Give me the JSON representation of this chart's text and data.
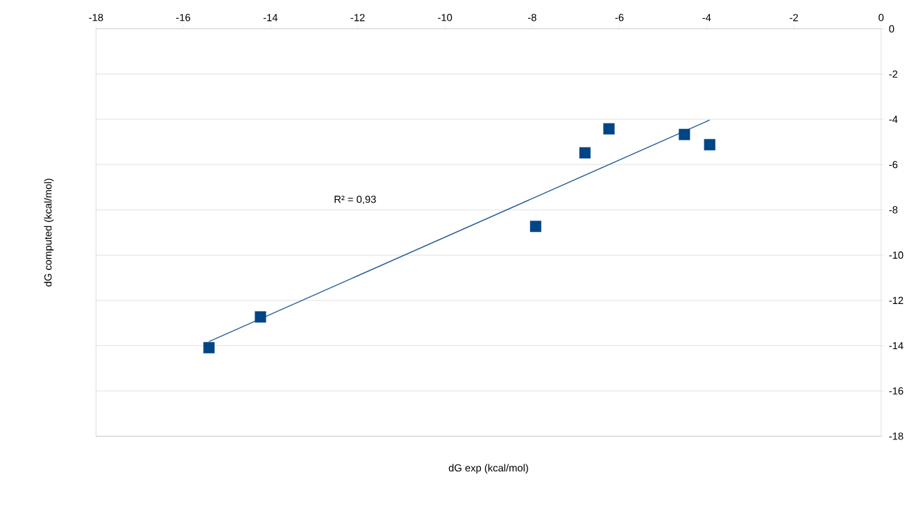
{
  "chart_data": {
    "type": "scatter",
    "xlabel": "dG exp (kcal/mol)",
    "ylabel": "dG computed (kcal/mol)",
    "annotations": [
      "R² = 0,93"
    ],
    "xlim": [
      -18,
      0
    ],
    "ylim": [
      -18,
      0
    ],
    "xticks": [
      -18,
      -16,
      -14,
      -12,
      -10,
      -8,
      -6,
      -4,
      -2,
      0
    ],
    "yticks": [
      -18,
      -16,
      -14,
      -12,
      -10,
      -8,
      -6,
      -4,
      -2,
      0
    ],
    "grid": "y",
    "series": [
      {
        "marker": "square",
        "color": "#004586",
        "x": [
          -15.41,
          -14.23,
          -7.92,
          -6.79,
          -6.24,
          -4.51,
          -3.93
        ],
        "values": [
          -14.09,
          -12.73,
          -8.73,
          -5.48,
          -4.42,
          -4.67,
          -5.12
        ]
      },
      {
        "type": "line",
        "color": "#2a6099",
        "x": [
          -15.41,
          -3.93
        ],
        "values": [
          -13.82,
          -4.03
        ]
      }
    ]
  }
}
